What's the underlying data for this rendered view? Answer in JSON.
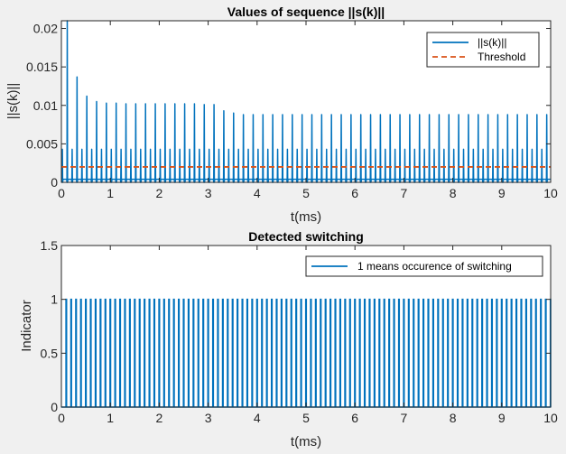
{
  "chart_data": [
    {
      "type": "line",
      "title": "Values of sequence ||s(k)||",
      "xlabel": "t(ms)",
      "ylabel": "||s(k)||",
      "xlim": [
        0,
        10
      ],
      "ylim": [
        0,
        0.021
      ],
      "xticks": [
        0,
        1,
        2,
        3,
        4,
        5,
        6,
        7,
        8,
        9,
        10
      ],
      "xtick_labels": [
        "0",
        "1",
        "2",
        "3",
        "4",
        "5",
        "6",
        "7",
        "8",
        "9",
        "10"
      ],
      "yticks": [
        0,
        0.005,
        0.01,
        0.015,
        0.02
      ],
      "ytick_labels": [
        "0",
        "0.005",
        "0.01",
        "0.015",
        "0.02"
      ],
      "grid": false,
      "legend_position": "top-right",
      "series": [
        {
          "name": "||s(k)||",
          "color": "#0072bd",
          "style": "solid",
          "pulse_period_ms": 0.1,
          "primary_peaks": {
            "x": [
              0.12,
              0.31,
              0.51,
              0.71,
              0.91,
              1.11,
              1.31,
              1.51,
              1.71,
              1.91,
              2.11,
              2.31,
              2.51,
              2.71,
              2.91,
              3.11,
              3.31,
              3.51,
              3.71,
              3.91,
              4.11,
              4.31,
              4.51,
              4.71,
              4.91,
              5.11,
              5.31,
              5.51,
              5.71,
              5.91,
              6.11,
              6.31,
              6.51,
              6.71,
              6.91,
              7.11,
              7.31,
              7.51,
              7.71,
              7.91,
              8.11,
              8.31,
              8.51,
              8.71,
              8.91,
              9.11,
              9.31,
              9.51,
              9.71,
              9.91
            ],
            "y": [
              0.0212,
              0.0137,
              0.0112,
              0.0105,
              0.0103,
              0.0103,
              0.0102,
              0.0102,
              0.0102,
              0.0102,
              0.0102,
              0.0102,
              0.0102,
              0.0102,
              0.0101,
              0.0101,
              0.0093,
              0.009,
              0.0088,
              0.0088,
              0.0088,
              0.0088,
              0.0088,
              0.0088,
              0.0088,
              0.0088,
              0.0088,
              0.0088,
              0.0088,
              0.0088,
              0.0088,
              0.0088,
              0.0088,
              0.0088,
              0.0088,
              0.0088,
              0.0088,
              0.0088,
              0.0088,
              0.0088,
              0.0088,
              0.0088,
              0.0088,
              0.0088,
              0.0088,
              0.0088,
              0.0088,
              0.0088,
              0.0088,
              0.0088
            ]
          },
          "secondary_peak_value": 0.0043,
          "baseline_value": 0.0004
        },
        {
          "name": "Threshold",
          "color": "#d95319",
          "style": "dashed",
          "x": [
            0,
            10
          ],
          "y": [
            0.002,
            0.002
          ]
        }
      ]
    },
    {
      "type": "line",
      "title": "Detected switching",
      "xlabel": "t(ms)",
      "ylabel": "Indicator",
      "xlim": [
        0,
        10
      ],
      "ylim": [
        0,
        1.5
      ],
      "xticks": [
        0,
        1,
        2,
        3,
        4,
        5,
        6,
        7,
        8,
        9,
        10
      ],
      "xtick_labels": [
        "0",
        "1",
        "2",
        "3",
        "4",
        "5",
        "6",
        "7",
        "8",
        "9",
        "10"
      ],
      "yticks": [
        0,
        0.5,
        1,
        1.5
      ],
      "ytick_labels": [
        "0",
        "0.5",
        "1",
        "1.5"
      ],
      "grid": false,
      "legend_position": "top-right",
      "series": [
        {
          "name": "1 means occurence of switching",
          "color": "#0072bd",
          "style": "solid",
          "pulse_period_ms": 0.1,
          "pulse_value": 1,
          "pulse_count": 100,
          "x_first_pulse": 0.1
        }
      ]
    }
  ]
}
